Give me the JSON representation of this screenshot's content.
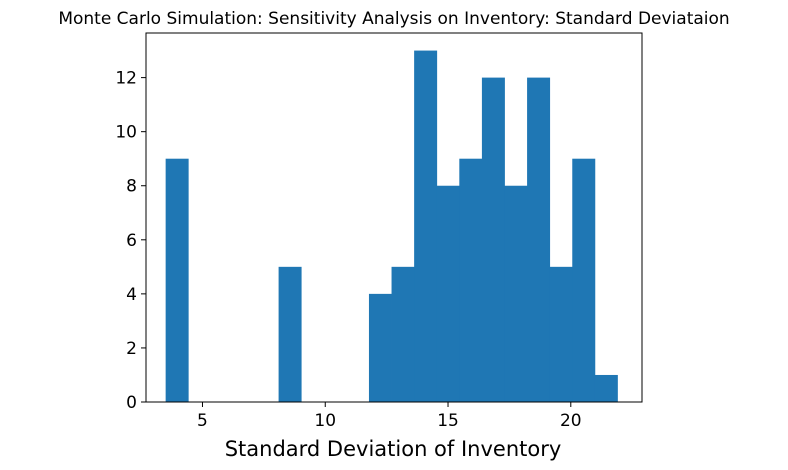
{
  "chart_data": {
    "type": "bar",
    "title": "Monte Carlo Simulation: Sensitivity Analysis on Inventory: Standard Deviataion",
    "xlabel": "Standard Deviation of Inventory",
    "ylabel": "",
    "xlim": [
      2.7,
      22.9
    ],
    "ylim": [
      0,
      13.65
    ],
    "xticks": [
      5,
      10,
      15,
      20
    ],
    "yticks": [
      0,
      2,
      4,
      6,
      8,
      10,
      12
    ],
    "bar_color": "#1f77b4",
    "grid": false,
    "legend": "none",
    "bins": [
      {
        "x0": 3.5,
        "x1": 4.42,
        "count": 9
      },
      {
        "x0": 4.42,
        "x1": 5.34,
        "count": 0
      },
      {
        "x0": 5.34,
        "x1": 6.26,
        "count": 0
      },
      {
        "x0": 6.26,
        "x1": 7.18,
        "count": 0
      },
      {
        "x0": 7.18,
        "x1": 8.1,
        "count": 0
      },
      {
        "x0": 8.1,
        "x1": 9.02,
        "count": 5
      },
      {
        "x0": 9.02,
        "x1": 9.94,
        "count": 0
      },
      {
        "x0": 9.94,
        "x1": 10.86,
        "count": 0
      },
      {
        "x0": 10.86,
        "x1": 11.78,
        "count": 0
      },
      {
        "x0": 11.78,
        "x1": 12.7,
        "count": 4
      },
      {
        "x0": 12.7,
        "x1": 13.62,
        "count": 5
      },
      {
        "x0": 13.62,
        "x1": 14.54,
        "count": 13
      },
      {
        "x0": 14.54,
        "x1": 15.46,
        "count": 8
      },
      {
        "x0": 15.46,
        "x1": 16.38,
        "count": 9
      },
      {
        "x0": 16.38,
        "x1": 17.3,
        "count": 12
      },
      {
        "x0": 17.3,
        "x1": 18.22,
        "count": 8
      },
      {
        "x0": 18.22,
        "x1": 19.14,
        "count": 12
      },
      {
        "x0": 19.14,
        "x1": 20.06,
        "count": 5
      },
      {
        "x0": 20.06,
        "x1": 20.98,
        "count": 9
      },
      {
        "x0": 20.98,
        "x1": 21.9,
        "count": 1
      }
    ]
  }
}
